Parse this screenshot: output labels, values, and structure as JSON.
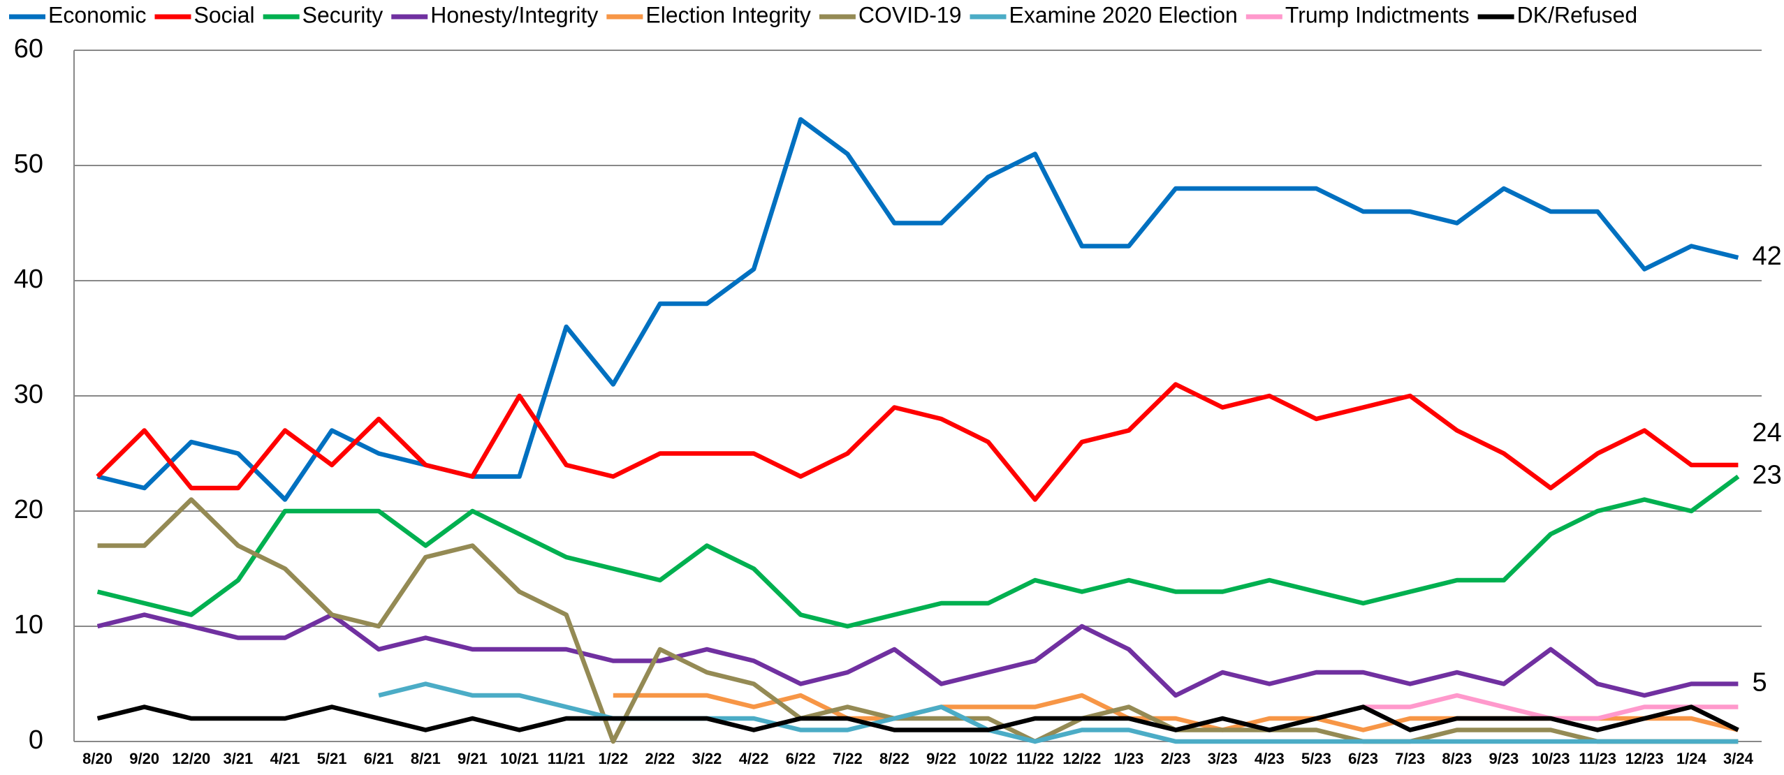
{
  "chart_data": {
    "type": "line",
    "categories": [
      "8/20",
      "9/20",
      "12/20",
      "3/21",
      "4/21",
      "5/21",
      "6/21",
      "8/21",
      "9/21",
      "10/21",
      "11/21",
      "1/22",
      "2/22",
      "3/22",
      "4/22",
      "6/22",
      "7/22",
      "8/22",
      "9/22",
      "10/22",
      "11/22",
      "12/22",
      "1/23",
      "2/23",
      "3/23",
      "4/23",
      "5/23",
      "6/23",
      "7/23",
      "8/23",
      "9/23",
      "10/23",
      "11/23",
      "12/23",
      "1/24",
      "3/24"
    ],
    "ylim": [
      0,
      60
    ],
    "yticks": [
      0,
      10,
      20,
      30,
      40,
      50,
      60
    ],
    "grid": true,
    "legend": "top",
    "series": [
      {
        "name": "Economic",
        "color": "#0070c0",
        "end_label": "42",
        "values": [
          23,
          22,
          26,
          25,
          21,
          27,
          25,
          24,
          23,
          23,
          36,
          31,
          38,
          38,
          41,
          54,
          51,
          45,
          45,
          49,
          51,
          43,
          43,
          48,
          48,
          48,
          48,
          46,
          46,
          45,
          48,
          46,
          46,
          41,
          43,
          42
        ]
      },
      {
        "name": "Social",
        "color": "#ff0000",
        "end_label": "24",
        "values": [
          23,
          27,
          22,
          22,
          27,
          24,
          28,
          24,
          23,
          30,
          24,
          23,
          25,
          25,
          25,
          23,
          25,
          29,
          28,
          26,
          21,
          26,
          27,
          31,
          29,
          30,
          28,
          29,
          30,
          27,
          25,
          22,
          25,
          27,
          24,
          24
        ]
      },
      {
        "name": "Security",
        "color": "#00b050",
        "end_label": "23",
        "values": [
          13,
          12,
          11,
          14,
          20,
          20,
          20,
          17,
          20,
          18,
          16,
          15,
          14,
          17,
          15,
          11,
          10,
          11,
          12,
          12,
          14,
          13,
          14,
          13,
          13,
          14,
          13,
          12,
          13,
          14,
          14,
          18,
          20,
          21,
          20,
          23
        ]
      },
      {
        "name": "Honesty/Integrity",
        "color": "#7030a0",
        "end_label": "5",
        "values": [
          10,
          11,
          10,
          9,
          9,
          11,
          8,
          9,
          8,
          8,
          8,
          7,
          7,
          8,
          7,
          5,
          6,
          8,
          5,
          6,
          7,
          10,
          8,
          4,
          6,
          5,
          6,
          6,
          5,
          6,
          5,
          8,
          5,
          4,
          5,
          5
        ]
      },
      {
        "name": "Election Integrity",
        "color": "#f79646",
        "values": [
          null,
          null,
          null,
          null,
          null,
          null,
          null,
          null,
          null,
          null,
          null,
          4,
          4,
          4,
          3,
          4,
          2,
          2,
          3,
          3,
          3,
          4,
          2,
          2,
          1,
          2,
          2,
          1,
          2,
          2,
          2,
          2,
          2,
          2,
          2,
          1
        ]
      },
      {
        "name": "COVID-19",
        "color": "#948a54",
        "values": [
          17,
          17,
          21,
          17,
          15,
          11,
          10,
          16,
          17,
          13,
          11,
          0,
          8,
          6,
          5,
          2,
          3,
          2,
          2,
          2,
          0,
          2,
          3,
          1,
          1,
          1,
          1,
          0,
          0,
          1,
          1,
          1,
          0,
          0,
          0,
          0
        ]
      },
      {
        "name": "Examine 2020 Election",
        "color": "#4bacc6",
        "values": [
          null,
          null,
          null,
          null,
          null,
          null,
          4,
          5,
          4,
          4,
          3,
          2,
          2,
          2,
          2,
          1,
          1,
          2,
          3,
          1,
          0,
          1,
          1,
          0,
          0,
          0,
          0,
          0,
          0,
          0,
          0,
          0,
          0,
          0,
          0,
          0
        ]
      },
      {
        "name": "Trump Indictments",
        "color": "#ff99cc",
        "values": [
          null,
          null,
          null,
          null,
          null,
          null,
          null,
          null,
          null,
          null,
          null,
          null,
          null,
          null,
          null,
          null,
          null,
          null,
          null,
          null,
          null,
          null,
          null,
          null,
          null,
          null,
          null,
          3,
          3,
          4,
          3,
          2,
          2,
          3,
          3,
          3
        ]
      },
      {
        "name": "DK/Refused",
        "color": "#000000",
        "values": [
          2,
          3,
          2,
          2,
          2,
          3,
          2,
          1,
          2,
          1,
          2,
          2,
          2,
          2,
          1,
          2,
          2,
          1,
          1,
          1,
          2,
          2,
          2,
          1,
          2,
          1,
          2,
          3,
          1,
          2,
          2,
          2,
          1,
          2,
          3,
          1
        ]
      }
    ]
  }
}
